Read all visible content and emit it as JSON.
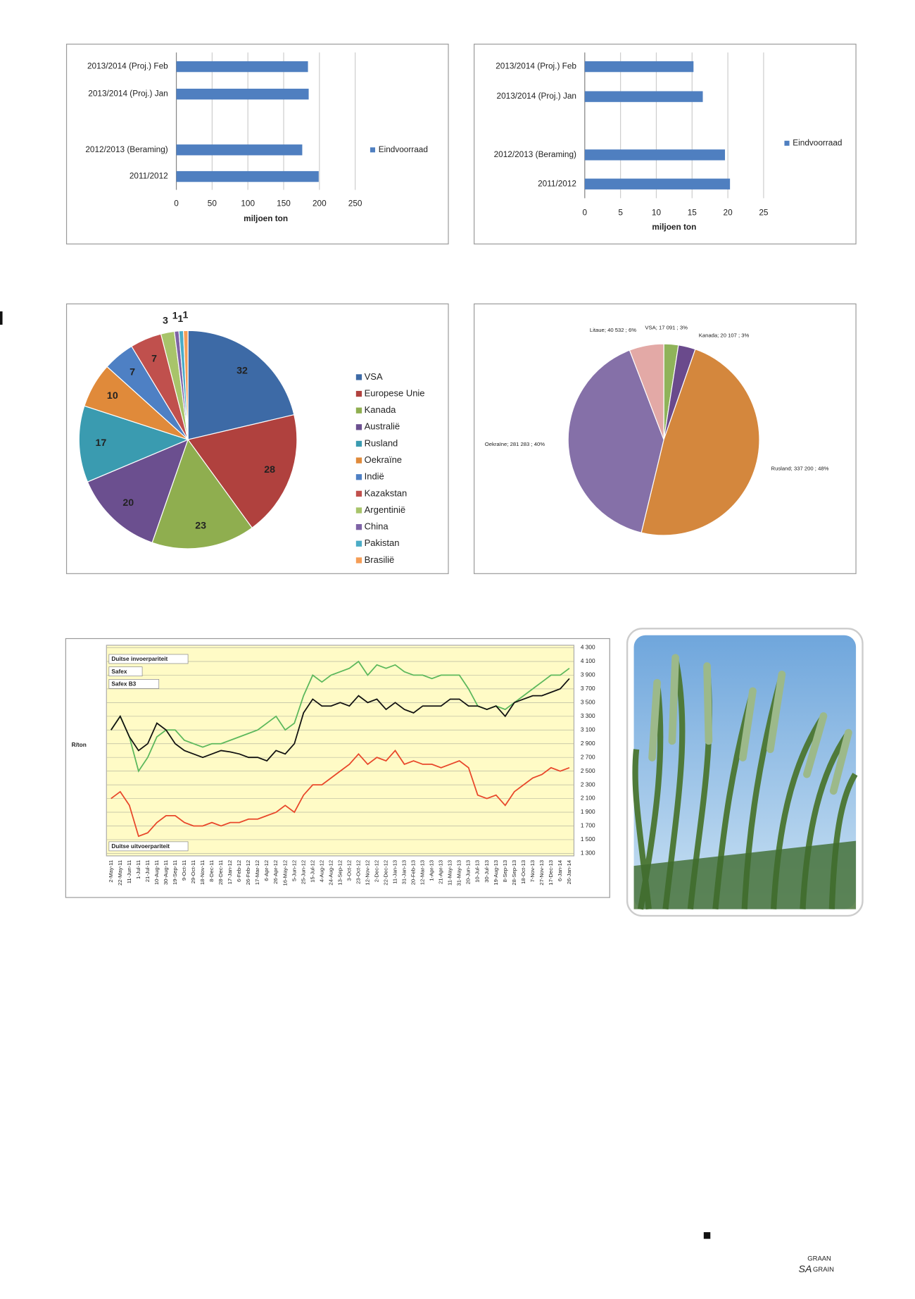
{
  "chart_data": [
    {
      "type": "barh",
      "categories": [
        "2013/2014 (Proj.) Feb",
        "2013/2014 (Proj.) Jan",
        null,
        "2012/2013 (Beraming)",
        "2011/2012"
      ],
      "series": [
        {
          "name": "Eindvoorraad",
          "color": "#4f7fc0",
          "values": [
            184,
            185,
            null,
            176,
            199
          ]
        }
      ],
      "xlabel": "miljoen ton",
      "xlim": [
        0,
        250
      ],
      "xticks": [
        0,
        50,
        100,
        150,
        200,
        250
      ],
      "grid": true,
      "legend": "right"
    },
    {
      "type": "barh",
      "categories": [
        "2013/2014 (Proj.) Feb",
        "2013/2014 (Proj.) Jan",
        null,
        "2012/2013 (Beraming)",
        "2011/2012"
      ],
      "series": [
        {
          "name": "Eindvoorraad",
          "color": "#4f7fc0",
          "values": [
            15.2,
            16.5,
            null,
            19.6,
            20.3
          ]
        }
      ],
      "xlabel": "miljoen ton",
      "xlim": [
        0,
        25
      ],
      "xticks": [
        0,
        5,
        10,
        15,
        20,
        25
      ],
      "grid": true,
      "legend": "right"
    },
    {
      "type": "pie",
      "categories": [
        "VSA",
        "Europese Unie",
        "Kanada",
        "Australië",
        "Rusland",
        "Oekraïne",
        "Indië",
        "Kazakstan",
        "Argentinië",
        "China",
        "Pakistan",
        "Brasilië"
      ],
      "values": [
        32,
        28,
        23,
        20,
        17,
        10,
        7,
        7,
        3,
        1,
        1,
        1
      ],
      "colors": [
        "#3d6aa6",
        "#b0413e",
        "#8fae4f",
        "#6b4f8f",
        "#3a9bb0",
        "#e08a3a",
        "#4e80c4",
        "#c0504d",
        "#a8c46a",
        "#7e63a6",
        "#4bacc6",
        "#f59d56"
      ],
      "legend": "right"
    },
    {
      "type": "pie",
      "values": [
        17091,
        20107,
        337200,
        281283,
        40532
      ],
      "value_labels": [
        "VSA; 17 091 ; 3%",
        "Kanada; 20 107 ; 3%",
        "Rusland; 337 200 ; 48%",
        "Oekraïne; 281 283 ; 40%",
        "Litaue; 40 532 ; 6%"
      ],
      "colors": [
        "#8fb35a",
        "#6a4a8c",
        "#d4873d",
        "#8570a8",
        "#e3a9a6"
      ]
    },
    {
      "type": "line",
      "ylabel": "R/ton",
      "categories": [
        "2-May-11",
        "22-May-11",
        "11-Jun-11",
        "1-Jul-11",
        "21-Jul-11",
        "10-Aug-11",
        "30-Aug-11",
        "19-Sep-11",
        "9-Oct-11",
        "29-Oct-11",
        "18-Nov-11",
        "8-Dec-11",
        "28-Dec-11",
        "17-Jan-12",
        "6-Feb-12",
        "26-Feb-12",
        "17-Mar-12",
        "6-Apr-12",
        "26-Apr-12",
        "16-May-12",
        "5-Jun-12",
        "25-Jun-12",
        "15-Jul-12",
        "4-Aug-12",
        "24-Aug-12",
        "13-Sep-12",
        "3-Oct-12",
        "23-Oct-12",
        "12-Nov-12",
        "2-Dec-12",
        "22-Dec-12",
        "11-Jan-13",
        "31-Jan-13",
        "20-Feb-13",
        "12-Mar-13",
        "1-Apr-13",
        "21-Apr-13",
        "11-May-13",
        "31-May-13",
        "20-Jun-13",
        "10-Jul-13",
        "30-Jul-13",
        "19-Aug-13",
        "8-Sep-13",
        "28-Sep-13",
        "18-Oct-13",
        "7-Nov-13",
        "27-Nov-13",
        "17-Dec-13",
        "6-Jan-14",
        "26-Jan-14"
      ],
      "series": [
        {
          "name": "Duitse invoerpariteit",
          "color": "#5cb85c",
          "values": [
            3100,
            3300,
            3000,
            2500,
            2700,
            3000,
            3100,
            3100,
            2950,
            2900,
            2850,
            2900,
            2900,
            2950,
            3000,
            3050,
            3100,
            3200,
            3300,
            3100,
            3200,
            3600,
            3900,
            3800,
            3900,
            3950,
            4000,
            4100,
            3900,
            4050,
            4000,
            4050,
            3950,
            3900,
            3900,
            3850,
            3900,
            3900,
            3900,
            3700,
            3450,
            3400,
            3450,
            3400,
            3500,
            3600,
            3700,
            3800,
            3900,
            3900,
            4000
          ]
        },
        {
          "name": "Safex B3",
          "color": "#111111",
          "values": [
            3100,
            3300,
            3000,
            2800,
            2900,
            3200,
            3100,
            2900,
            2800,
            2750,
            2700,
            2750,
            2800,
            2780,
            2750,
            2700,
            2700,
            2650,
            2800,
            2750,
            2900,
            3350,
            3550,
            3450,
            3450,
            3500,
            3450,
            3600,
            3500,
            3550,
            3400,
            3500,
            3400,
            3350,
            3450,
            3450,
            3450,
            3550,
            3550,
            3450,
            3450,
            3400,
            3450,
            3300,
            3500,
            3550,
            3600,
            3600,
            3650,
            3700,
            3850
          ]
        },
        {
          "name": "Duitse uitvoerpariteit",
          "color": "#e8472a",
          "values": [
            2100,
            2200,
            2000,
            1550,
            1600,
            1750,
            1850,
            1850,
            1750,
            1700,
            1700,
            1750,
            1700,
            1750,
            1750,
            1800,
            1800,
            1850,
            1900,
            2000,
            1900,
            2150,
            2300,
            2300,
            2400,
            2500,
            2600,
            2750,
            2600,
            2700,
            2650,
            2800,
            2600,
            2650,
            2600,
            2600,
            2550,
            2600,
            2650,
            2550,
            2150,
            2100,
            2150,
            2000,
            2200,
            2300,
            2400,
            2450,
            2550,
            2500,
            2550
          ]
        }
      ],
      "annotations": [
        "Safex"
      ],
      "ylim": [
        1300,
        4300
      ],
      "yticks": [
        {
          "value": 1300,
          "label": "1 300"
        },
        {
          "value": 1500,
          "label": "1 500"
        },
        {
          "value": 1700,
          "label": "1 700"
        },
        {
          "value": 1900,
          "label": "1 900"
        },
        {
          "value": 2100,
          "label": "2 100"
        },
        {
          "value": 2300,
          "label": "2 300"
        },
        {
          "value": 2500,
          "label": "2 500"
        },
        {
          "value": 2700,
          "label": "2 700"
        },
        {
          "value": 2900,
          "label": "2 900"
        },
        {
          "value": 3100,
          "label": "3 100"
        },
        {
          "value": 3300,
          "label": "3 300"
        },
        {
          "value": 3500,
          "label": "3 500"
        },
        {
          "value": 3700,
          "label": "3 700"
        },
        {
          "value": 3900,
          "label": "3 900"
        },
        {
          "value": 4100,
          "label": "4 100"
        },
        {
          "value": 4300,
          "label": "4 300"
        }
      ],
      "grid": true
    }
  ],
  "footer": {
    "logo_top": "GRAAN",
    "logo_left": "SA",
    "logo_right": "GRAIN"
  }
}
